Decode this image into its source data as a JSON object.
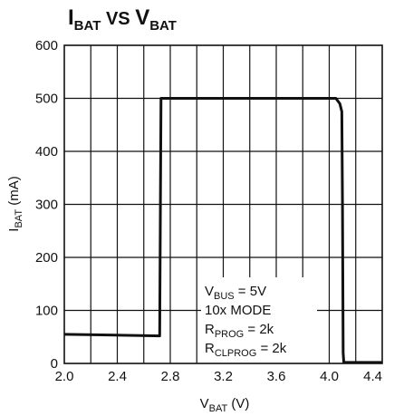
{
  "chart_data": {
    "type": "line",
    "title": {
      "main": "I",
      "main_sub": "BAT",
      "mid": " VS ",
      "main2": "V",
      "main2_sub": "BAT"
    },
    "xlabel": {
      "main": "V",
      "sub": "BAT",
      "rest": " (V)"
    },
    "ylabel": {
      "main": "I",
      "sub": "BAT",
      "rest": " (mA)"
    },
    "xlim": [
      2.0,
      4.4
    ],
    "ylim": [
      0,
      600
    ],
    "x_ticks": [
      "2.0",
      "2.4",
      "2.8",
      "3.2",
      "3.6",
      "4.0",
      "4.4"
    ],
    "y_ticks": [
      "0",
      "100",
      "200",
      "300",
      "400",
      "500",
      "600"
    ],
    "x_grid_step": 0.2,
    "y_grid_step": 100,
    "grid": true,
    "series": [
      {
        "x": [
          2.0,
          2.72,
          2.72,
          2.73,
          3.9,
          4.05,
          4.08,
          4.095,
          4.1,
          4.105,
          4.11,
          4.4
        ],
        "y": [
          55,
          52,
          52,
          500,
          500,
          500,
          490,
          475,
          300,
          20,
          2,
          2
        ]
      }
    ],
    "annotation": {
      "lines": [
        {
          "main": "V",
          "sub": "BUS",
          "rest": " = 5V"
        },
        {
          "main": "10x MODE",
          "sub": "",
          "rest": ""
        },
        {
          "main": "R",
          "sub": "PROG",
          "rest": " = 2k"
        },
        {
          "main": "R",
          "sub": "CLPROG",
          "rest": " = 2k"
        }
      ]
    }
  }
}
